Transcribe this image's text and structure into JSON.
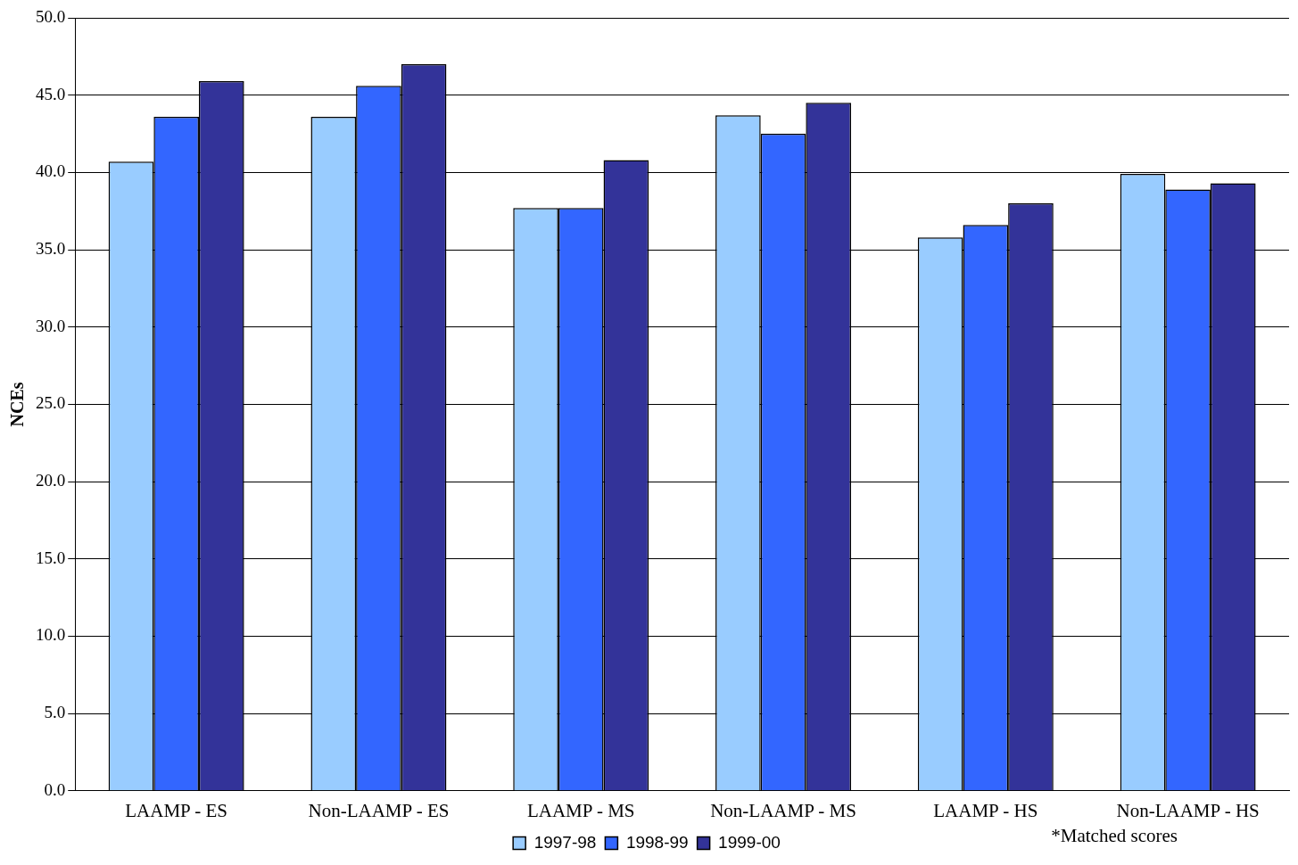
{
  "chart_data": {
    "type": "bar",
    "ylabel": "NCEs",
    "categories": [
      "LAAMP - ES",
      "Non-LAAMP - ES",
      "LAAMP - MS",
      "Non-LAAMP - MS",
      "LAAMP - HS",
      "Non-LAAMP - HS"
    ],
    "series": [
      {
        "name": "1997-98",
        "color": "#99ccff",
        "values": [
          40.7,
          43.6,
          37.7,
          43.7,
          35.8,
          39.9
        ]
      },
      {
        "name": "1998-99",
        "color": "#3366ff",
        "values": [
          43.6,
          45.6,
          37.7,
          42.5,
          36.6,
          38.9
        ]
      },
      {
        "name": "1999-00",
        "color": "#333399",
        "values": [
          45.9,
          47.0,
          40.8,
          44.5,
          38.0,
          39.3
        ]
      }
    ],
    "ylim": [
      0,
      50
    ],
    "yticks": [
      {
        "value": 0,
        "label": "0.0"
      },
      {
        "value": 5,
        "label": "5.0"
      },
      {
        "value": 10,
        "label": "10.0"
      },
      {
        "value": 15,
        "label": "15.0"
      },
      {
        "value": 20,
        "label": "20.0"
      },
      {
        "value": 25,
        "label": "25.0"
      },
      {
        "value": 30,
        "label": "30.0"
      },
      {
        "value": 35,
        "label": "35.0"
      },
      {
        "value": 40,
        "label": "40.0"
      },
      {
        "value": 45,
        "label": "45.0"
      },
      {
        "value": 50,
        "label": "50.0"
      }
    ],
    "grid": "y",
    "legend": "bottom",
    "annotations": [
      "*Matched scores"
    ]
  }
}
